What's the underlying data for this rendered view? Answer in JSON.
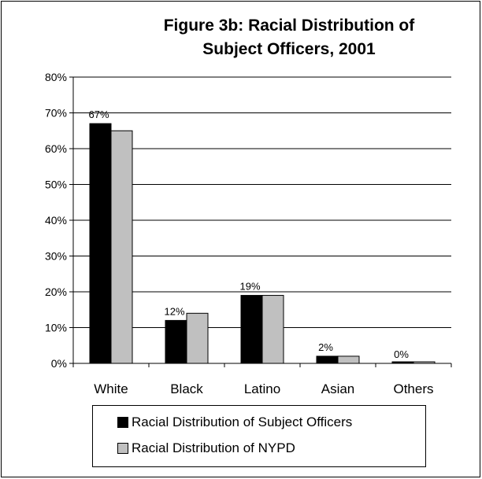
{
  "chart_data": {
    "type": "bar",
    "title": "Figure 3b: Racial Distribution of Subject Officers, 2001",
    "title_lines": [
      "Figure 3b: Racial Distribution of",
      "Subject Officers, 2001"
    ],
    "categories": [
      "White",
      "Black",
      "Latino",
      "Asian",
      "Others"
    ],
    "series": [
      {
        "name": "Racial Distribution of Subject Officers",
        "values": [
          67,
          12,
          19,
          2,
          0
        ],
        "color": "#000000"
      },
      {
        "name": "Racial Distribution of NYPD",
        "values": [
          65,
          14,
          19,
          2,
          0
        ],
        "color": "#c0c0c0"
      }
    ],
    "data_labels": [
      "67%",
      "12%",
      "19%",
      "2%",
      "0%"
    ],
    "y_ticks": [
      "0%",
      "10%",
      "20%",
      "30%",
      "40%",
      "50%",
      "60%",
      "70%",
      "80%"
    ],
    "ylim": [
      0,
      80
    ],
    "grid": true,
    "legend_position": "bottom"
  }
}
